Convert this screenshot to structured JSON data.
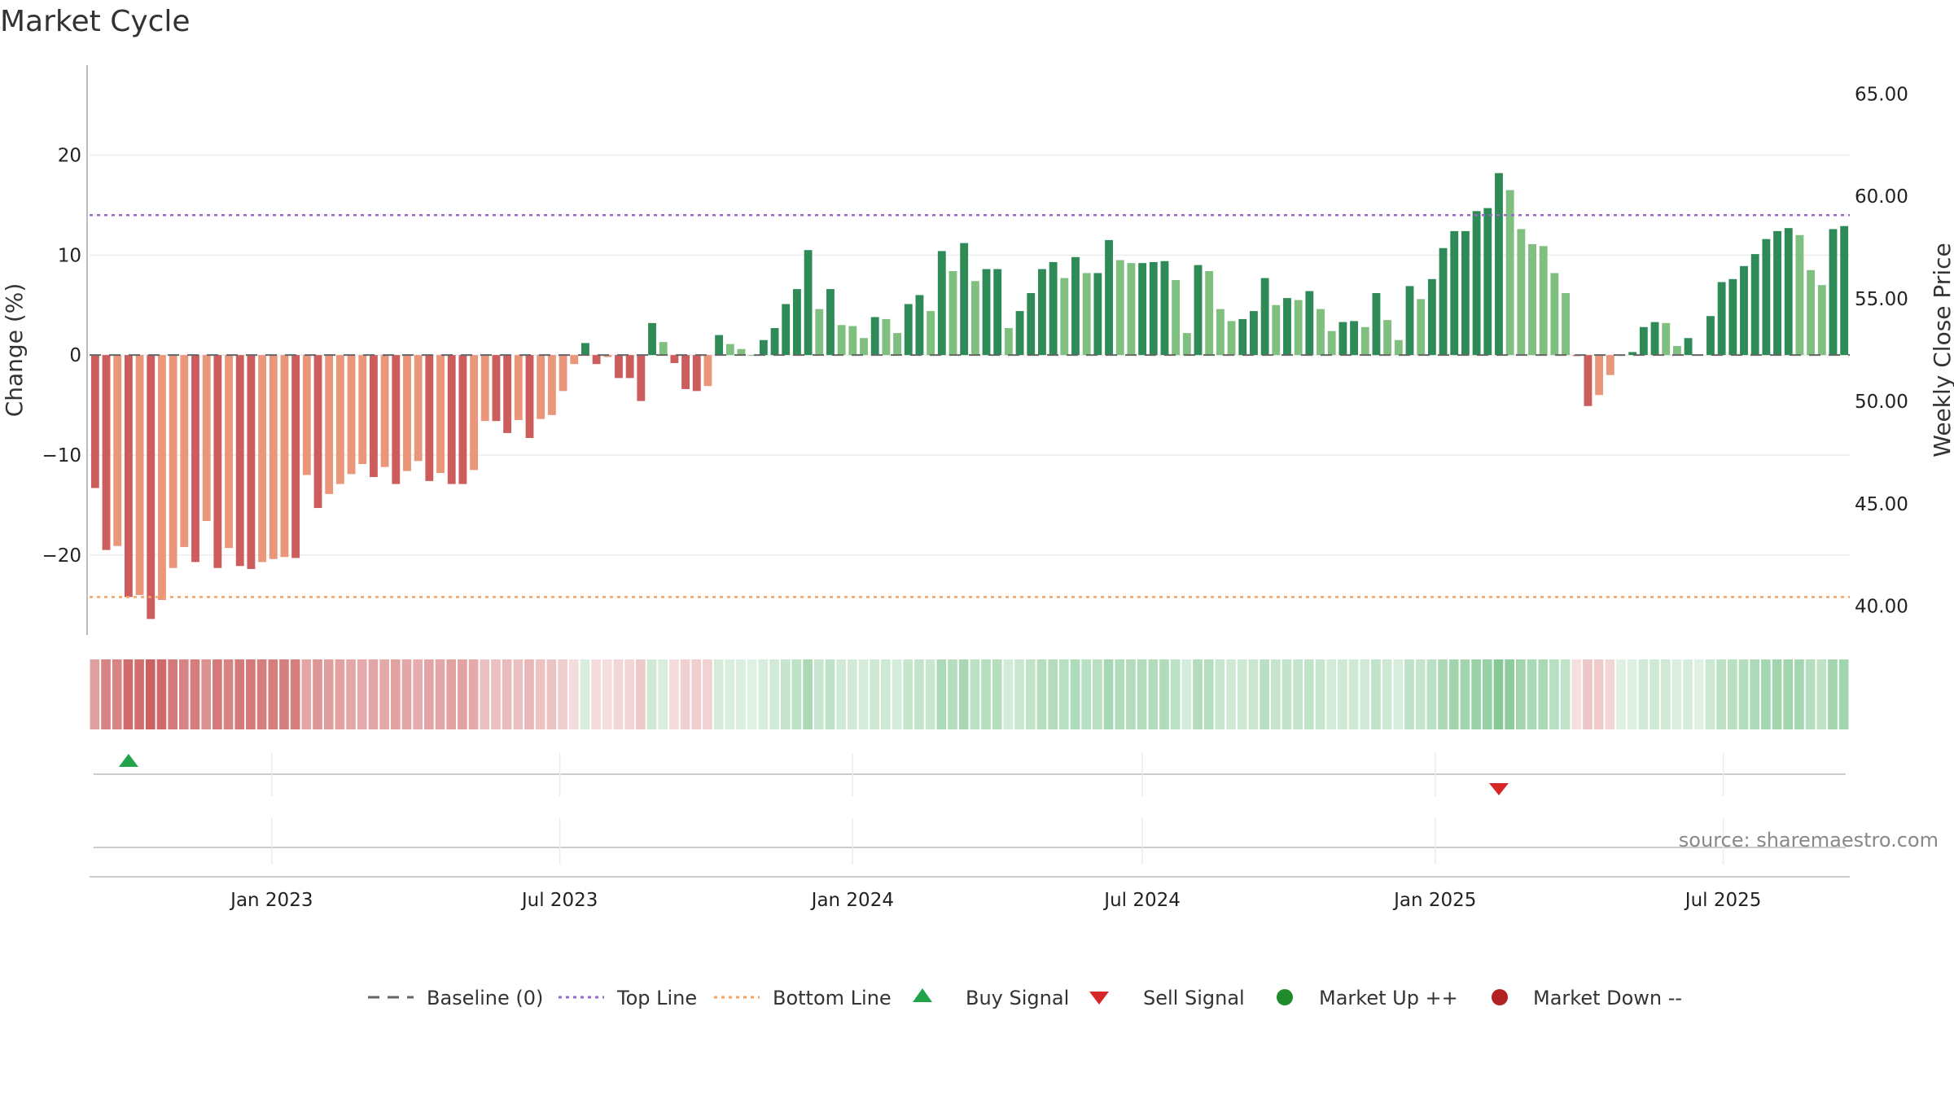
{
  "title": "Market Cycle",
  "source": "source: sharemaestro.com",
  "colors": {
    "up_strong": "#2e8b57",
    "up_weak": "#7fbf7f",
    "down_strong": "#cd5c5c",
    "down_weak": "#e9967a",
    "top_line": "#9966cc",
    "bottom_line": "#f4a460",
    "buy": "#22a34a",
    "sell": "#d62728",
    "market_up": "#1f8b2c",
    "market_down": "#b22222",
    "baseline": "#666666"
  },
  "chart_data": {
    "type": "bar",
    "x_start": "2022-09-12",
    "x_step_days": 7,
    "x_ticks": [
      "Jan 2023",
      "Jul 2023",
      "Jan 2024",
      "Jul 2024",
      "Jan 2025",
      "Jul 2025"
    ],
    "x_tick_dates": [
      "2023-01-01",
      "2023-07-01",
      "2024-01-01",
      "2024-07-01",
      "2025-01-01",
      "2025-07-01"
    ],
    "ylabel_left": "Change (%)",
    "ylabel_right": "Weekly Close Price",
    "ylim_left": [
      -28,
      29
    ],
    "y_ticks_left": [
      20,
      10,
      0,
      -10,
      -20
    ],
    "y_ticks_left_labels": [
      "20",
      "10",
      "0",
      "−10",
      "−20"
    ],
    "ylim_right": [
      38.6,
      66.4
    ],
    "y_ticks_right": [
      65,
      60,
      55,
      50,
      45,
      40
    ],
    "y_ticks_right_labels": [
      "65.00",
      "60.00",
      "55.00",
      "50.00",
      "45.00",
      "40.00"
    ],
    "top_line": 14,
    "bottom_line": -24.2,
    "baseline": 0,
    "values": [
      -13.3,
      -19.5,
      -19.1,
      -24.2,
      -24.0,
      -26.4,
      -24.5,
      -21.3,
      -19.2,
      -20.7,
      -16.6,
      -21.3,
      -19.3,
      -21.1,
      -21.4,
      -20.7,
      -20.4,
      -20.2,
      -20.3,
      -12.0,
      -15.3,
      -13.9,
      -12.9,
      -11.9,
      -10.9,
      -12.2,
      -11.2,
      -12.9,
      -11.6,
      -10.6,
      -12.6,
      -11.8,
      -12.9,
      -12.9,
      -11.5,
      -6.6,
      -6.6,
      -7.8,
      -6.5,
      -8.3,
      -6.4,
      -6.0,
      -3.6,
      -0.9,
      1.2,
      -0.9,
      -0.2,
      -2.3,
      -2.3,
      -4.6,
      3.2,
      1.3,
      -0.8,
      -3.4,
      -3.6,
      -3.1,
      2.0,
      1.1,
      0.6,
      0.0,
      1.5,
      2.7,
      5.1,
      6.6,
      10.5,
      4.6,
      6.6,
      3.0,
      2.9,
      1.7,
      3.8,
      3.6,
      2.2,
      5.1,
      6.0,
      4.4,
      10.4,
      8.4,
      11.2,
      7.4,
      8.6,
      8.6,
      2.7,
      4.4,
      6.2,
      8.6,
      9.3,
      7.7,
      9.8,
      8.2,
      8.2,
      11.5,
      9.5,
      9.2,
      9.2,
      9.3,
      9.4,
      7.5,
      2.2,
      9.0,
      8.4,
      4.6,
      3.4,
      3.6,
      4.4,
      7.7,
      5.0,
      5.7,
      5.5,
      6.4,
      4.6,
      2.4,
      3.3,
      3.4,
      2.8,
      6.2,
      3.5,
      1.5,
      6.9,
      5.6,
      7.6,
      10.7,
      12.4,
      12.4,
      14.4,
      14.7,
      18.2,
      16.5,
      12.6,
      11.1,
      10.9,
      8.2,
      6.2,
      -0.1,
      -5.1,
      -4.0,
      -2.0,
      0.0,
      0.3,
      2.8,
      3.3,
      3.2,
      0.9,
      1.7,
      0.0,
      3.9,
      7.3,
      7.6,
      8.9,
      10.1,
      11.6,
      12.4,
      12.7,
      12.0,
      8.5,
      7.0,
      12.6,
      12.9
    ],
    "buy_signals": [
      "2022-10-03"
    ],
    "sell_signals": [
      "2025-02-10"
    ],
    "legend": [
      "Baseline (0)",
      "Top Line",
      "Bottom Line",
      "Buy Signal",
      "Sell Signal",
      "Market Up ++",
      "Market Down --"
    ]
  }
}
